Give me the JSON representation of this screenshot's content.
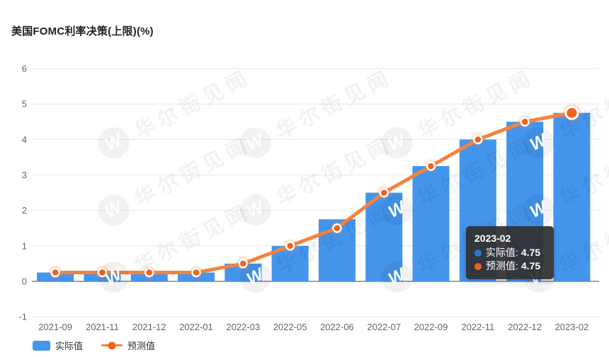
{
  "title": "美国FOMC利率决策(上限)(%)",
  "watermark": {
    "logo_letter": "W",
    "text": "华尔街见闻"
  },
  "colors": {
    "bar_blue": "#4495EC",
    "line_orange": "#F5823C",
    "dot_orange": "#F2621F",
    "grid": "#E8E8E8",
    "zero_axis": "#444444",
    "axis_label": "#666666"
  },
  "legend": [
    {
      "label": "实际值",
      "marker": "bar",
      "color": "#4495EC"
    },
    {
      "label": "预测值",
      "marker": "line-dot",
      "color": "#F5823C",
      "dot_color": "#F2621F"
    }
  ],
  "tooltip": {
    "title": "2023-02",
    "rows": [
      {
        "label": "实际值:",
        "value": "4.75",
        "color": "#2878D4"
      },
      {
        "label": "预测值:",
        "value": "4.75",
        "color": "#F2621F"
      }
    ]
  },
  "chart_data": {
    "type": "bar+line combo",
    "categories": [
      "2021-09",
      "2021-11",
      "2021-12",
      "2022-01",
      "2022-03",
      "2022-05",
      "2022-06",
      "2022-07",
      "2022-09",
      "2022-11",
      "2022-12",
      "2023-02"
    ],
    "series": [
      {
        "name": "实际值",
        "type": "bar",
        "color": "#4495EC",
        "values": [
          0.25,
          0.25,
          0.25,
          0.25,
          0.5,
          1,
          1.75,
          2.5,
          3.25,
          4,
          4.5,
          4.75
        ]
      },
      {
        "name": "预测值",
        "type": "line",
        "color": "#F5823C",
        "dot_color": "#F2621F",
        "values": [
          0.25,
          0.25,
          0.25,
          0.25,
          0.5,
          1,
          1.5,
          2.5,
          3.25,
          4,
          4.5,
          4.75
        ]
      }
    ],
    "title": "美国FOMC利率决策(上限)(%)",
    "xlabel": "",
    "ylabel": "",
    "ylim": [
      -1,
      6
    ],
    "yticks": [
      6,
      5,
      4,
      3,
      2,
      1,
      0,
      -1
    ],
    "grid": true,
    "legend_position": "bottom-left",
    "highlight_index": 11,
    "highlight_tooltip": {
      "category": "2023-02",
      "实际值": 4.75,
      "预测值": 4.75
    }
  }
}
